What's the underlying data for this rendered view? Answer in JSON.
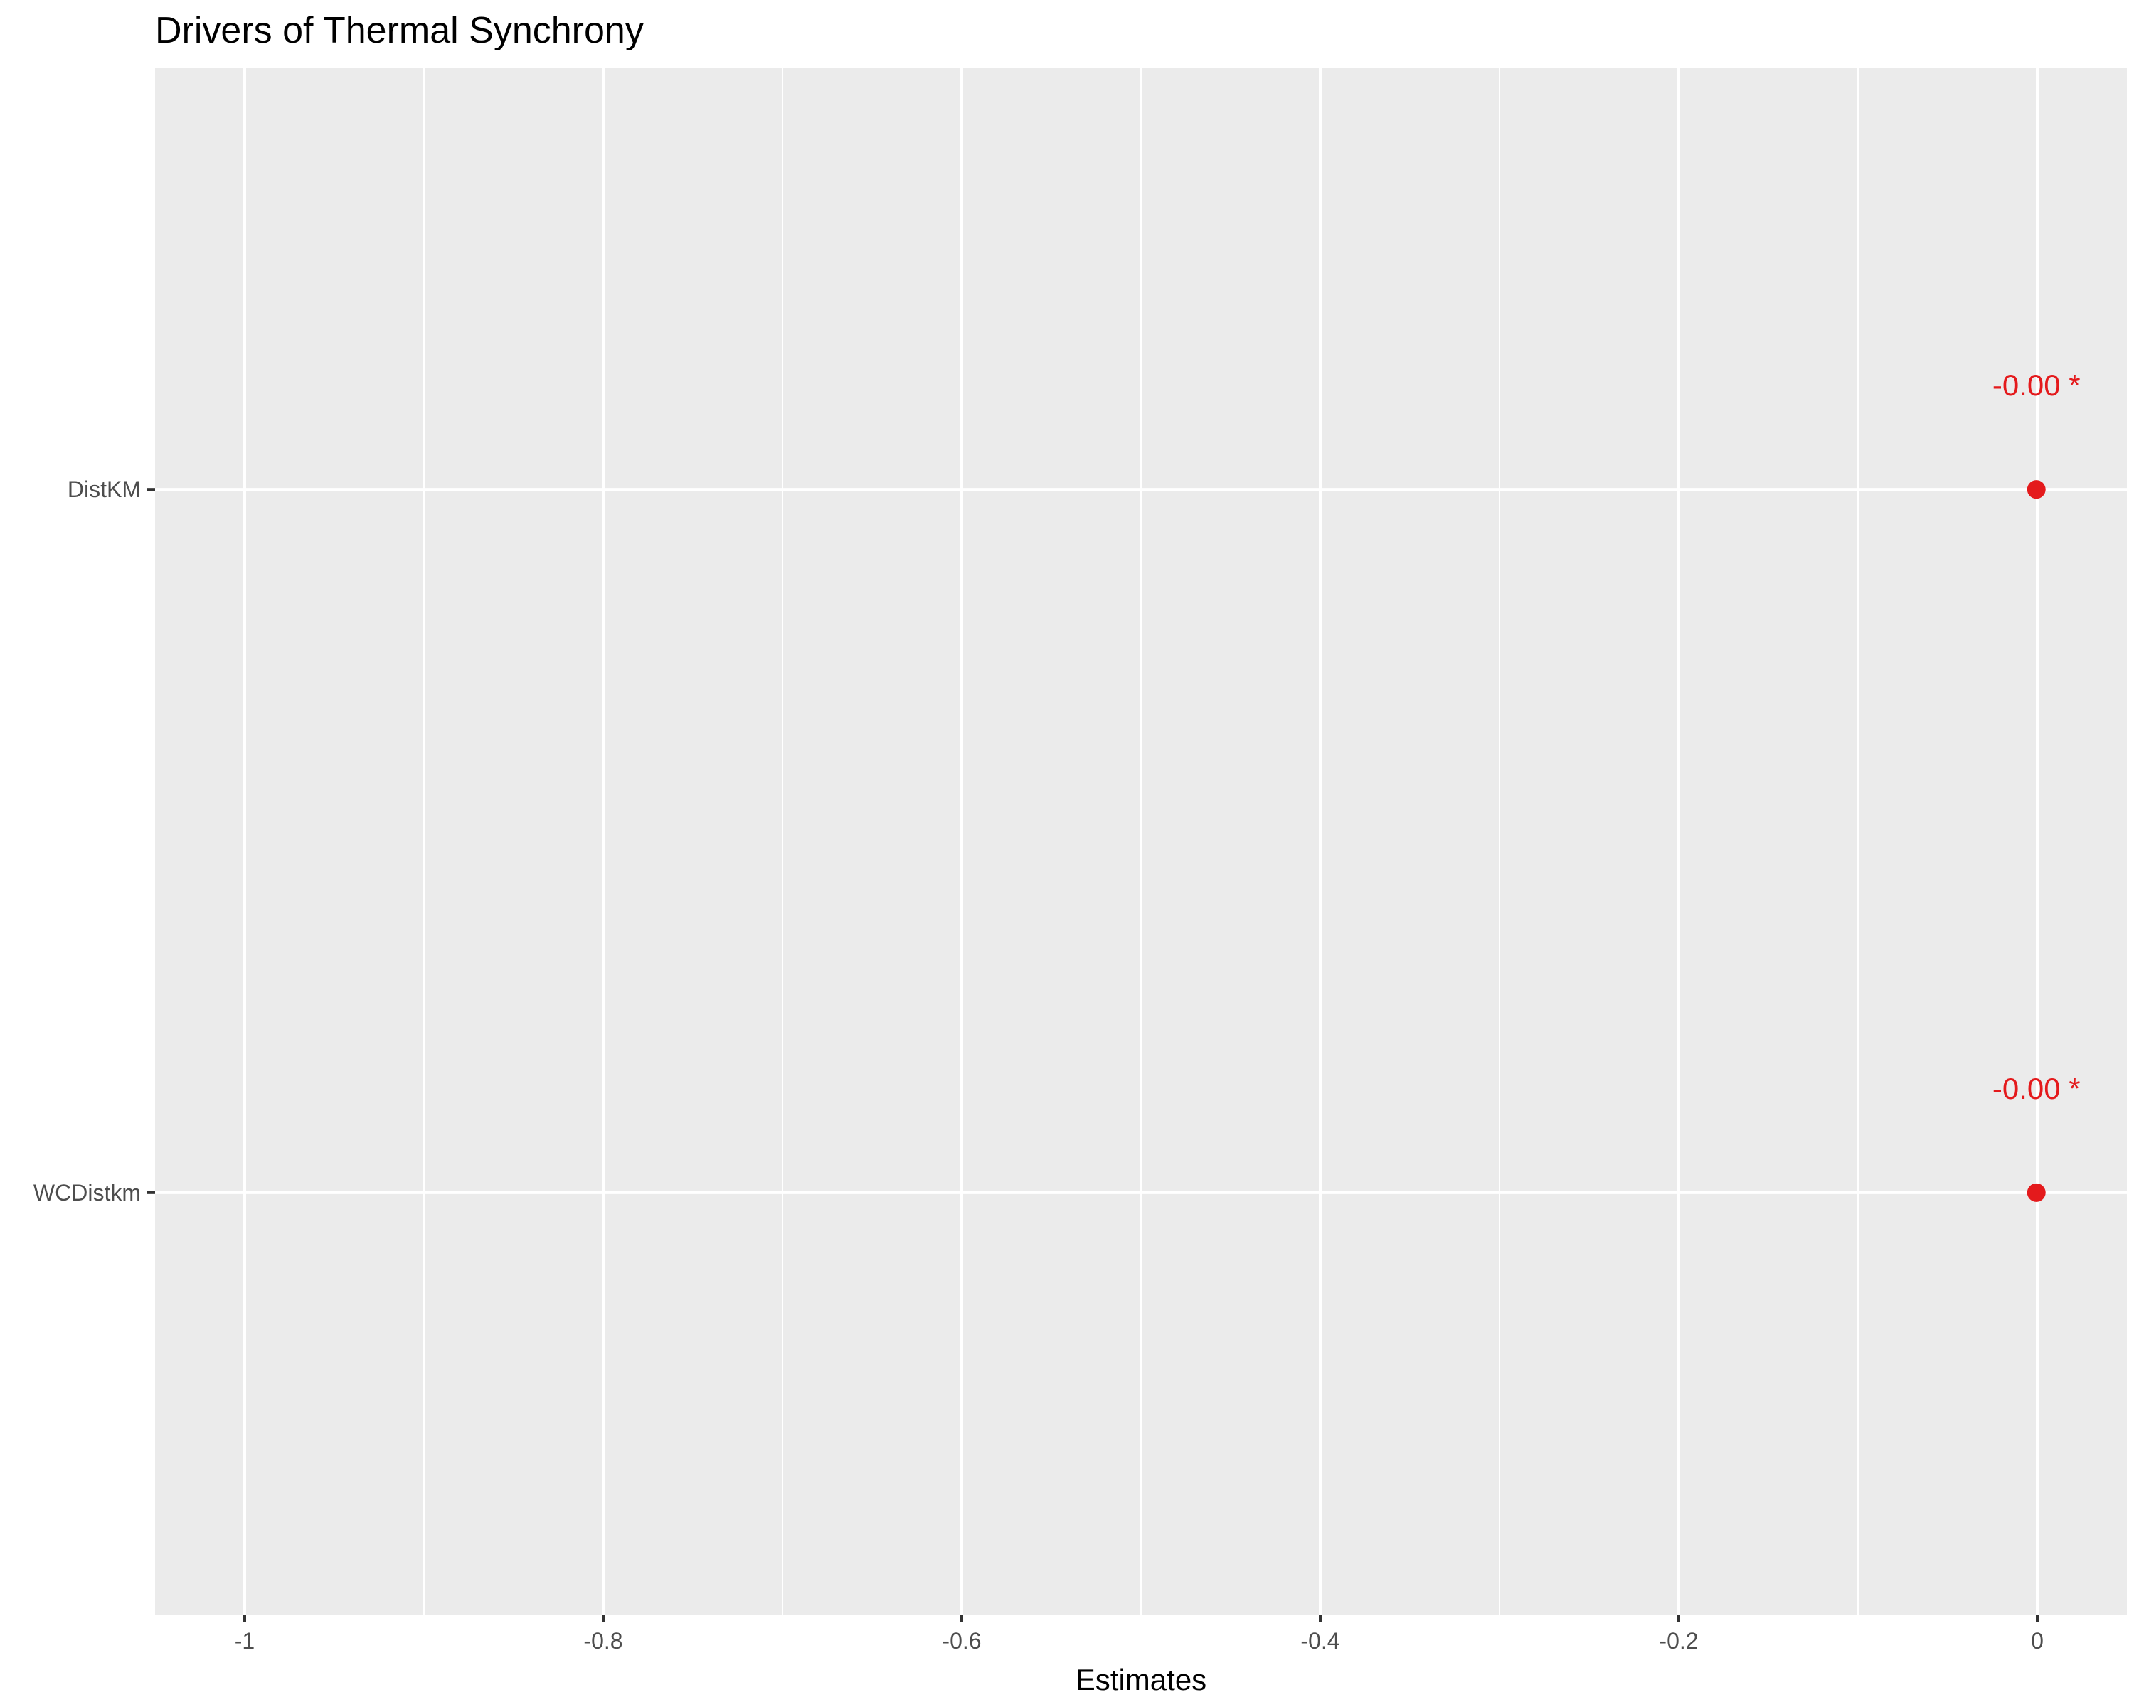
{
  "chart_data": {
    "type": "scatter",
    "title": "Drivers of Thermal Synchrony",
    "xlabel": "Estimates",
    "ylabel": "",
    "xlim": [
      -1.05,
      0.05
    ],
    "x_ticks": [
      -1,
      -0.8,
      -0.6,
      -0.4,
      -0.2,
      0
    ],
    "x_tick_labels": [
      "-1",
      "-0.8",
      "-0.6",
      "-0.4",
      "-0.2",
      "0"
    ],
    "categories": [
      "DistKM",
      "WCDistkm"
    ],
    "points": [
      {
        "term": "DistKM",
        "estimate": -0.0005,
        "label": "-0.00 *"
      },
      {
        "term": "WCDistkm",
        "estimate": -0.0005,
        "label": "-0.00 *"
      }
    ],
    "grid": true,
    "legend": "none",
    "colors": {
      "panel": "#ebebeb",
      "grid": "#ffffff",
      "point": "#e41a1c",
      "axis_text": "#4d4d4d",
      "ticks": "#333333"
    }
  }
}
